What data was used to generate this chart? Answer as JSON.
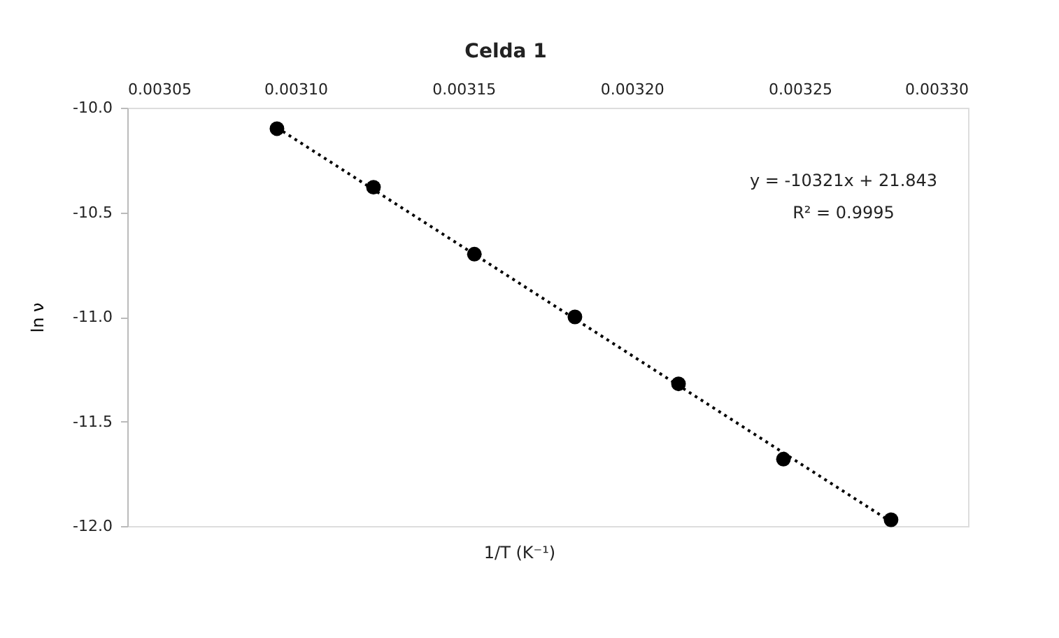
{
  "chart_data": {
    "type": "scatter",
    "title": "Celda 1",
    "xlabel": "1/T (K⁻¹)",
    "ylabel": "ln ν",
    "x": [
      0.0030945,
      0.0031232,
      0.0031532,
      0.0031831,
      0.0032139,
      0.0032451,
      0.0032771
    ],
    "series": [
      {
        "color": "#000000",
        "values": [
          -10.1,
          -10.38,
          -10.7,
          -11.0,
          -11.32,
          -11.68,
          -11.97
        ],
        "marker": "circle"
      },
      {
        "type": "line",
        "color": "#000000",
        "line_style": "dotted",
        "x": [
          0.0030945,
          0.0032771
        ],
        "values": [
          -10.095,
          -11.98
        ]
      }
    ],
    "annotations": [
      "y = -10321x + 21.843",
      "R² = 0.9995"
    ],
    "xlim": [
      0.00305,
      0.0033
    ],
    "xticks": [
      {
        "value": 0.00305,
        "label": "0.00305"
      },
      {
        "value": 0.0031,
        "label": "0.00310"
      },
      {
        "value": 0.00315,
        "label": "0.00315"
      },
      {
        "value": 0.0032,
        "label": "0.00320"
      },
      {
        "value": 0.00325,
        "label": "0.00325"
      },
      {
        "value": 0.0033,
        "label": "0.00330"
      }
    ],
    "ylim": [
      -12.0,
      -10.0
    ],
    "yticks": [
      {
        "value": -12,
        "label": "-12.0"
      },
      {
        "value": -11.5,
        "label": "-11.5"
      },
      {
        "value": -11,
        "label": "-11.0"
      },
      {
        "value": -10.5,
        "label": "-10.5"
      },
      {
        "value": -10,
        "label": "-10.0"
      }
    ],
    "grid": false
  }
}
